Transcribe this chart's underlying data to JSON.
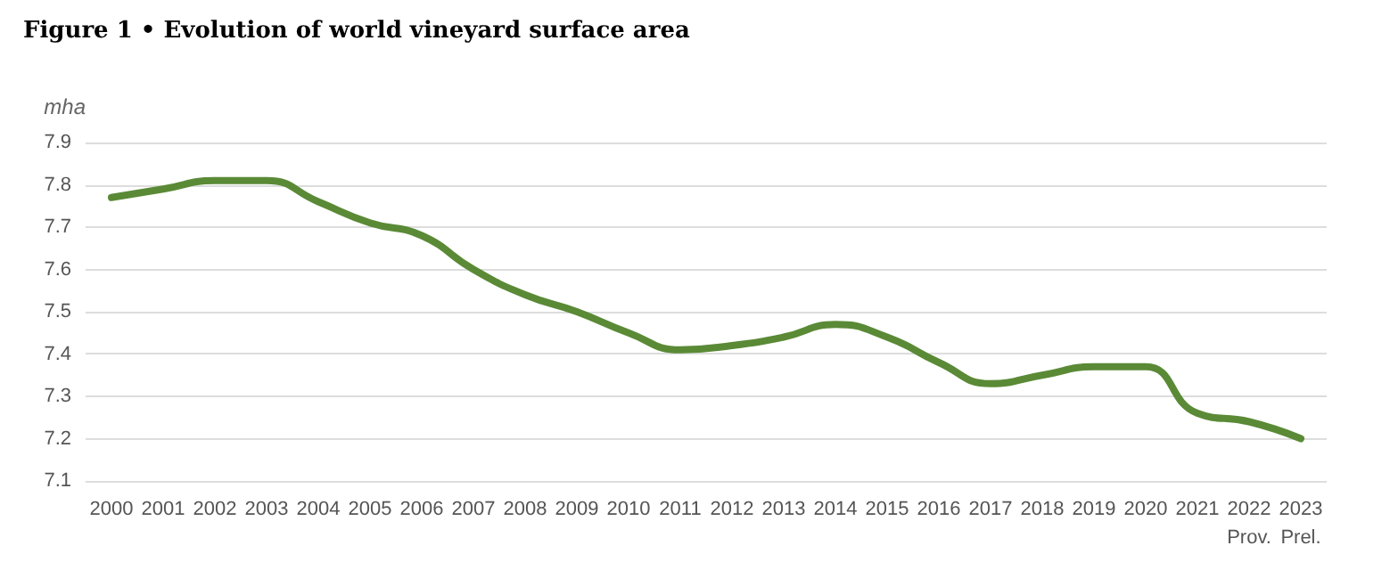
{
  "chart_data": {
    "type": "line",
    "title": "Figure 1 • Evolution of world vineyard surface area",
    "ylabel": "mha",
    "categories": [
      "2000",
      "2001",
      "2002",
      "2003",
      "2004",
      "2005",
      "2006",
      "2007",
      "2008",
      "2009",
      "2010",
      "2011",
      "2012",
      "2013",
      "2014",
      "2015",
      "2016",
      "2017",
      "2018",
      "2019",
      "2020",
      "2021",
      "2022\nProv.",
      "2023\nPrel."
    ],
    "series": [
      {
        "color": "#5a8a36",
        "values": [
          7.77,
          7.79,
          7.81,
          7.81,
          7.76,
          7.71,
          7.68,
          7.6,
          7.54,
          7.5,
          7.45,
          7.41,
          7.42,
          7.44,
          7.47,
          7.44,
          7.38,
          7.33,
          7.35,
          7.37,
          7.37,
          7.26,
          7.24,
          7.2
        ]
      }
    ],
    "ylim": [
      7.1,
      7.9
    ],
    "yticks": [
      7.1,
      7.2,
      7.3,
      7.4,
      7.5,
      7.6,
      7.7,
      7.8,
      7.9
    ],
    "grid": "y",
    "marker": "none",
    "line_style": "solid"
  }
}
